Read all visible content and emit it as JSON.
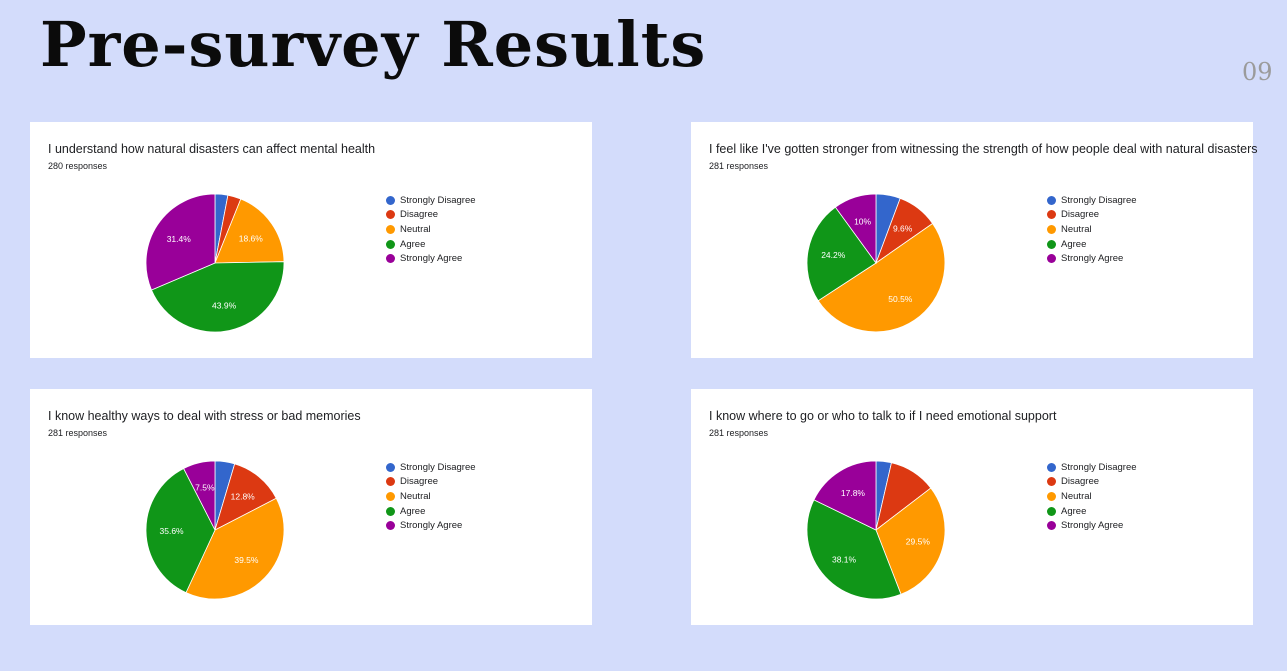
{
  "page": {
    "title": "Pre-survey Results",
    "page_number": "09"
  },
  "colors": {
    "Strongly Disagree": "#3366cc",
    "Disagree": "#dc3912",
    "Neutral": "#ff9900",
    "Agree": "#109618",
    "Strongly Agree": "#990099"
  },
  "chart_data": [
    {
      "type": "pie",
      "title": "I understand how natural disasters can affect mental health",
      "subtitle": "280 responses",
      "categories": [
        "Strongly Disagree",
        "Disagree",
        "Neutral",
        "Agree",
        "Strongly Agree"
      ],
      "values": [
        3.0,
        3.1,
        18.6,
        43.9,
        31.4
      ],
      "data_labels": [
        "",
        "",
        "18.6%",
        "43.9%",
        "31.4%"
      ],
      "legend": "right"
    },
    {
      "type": "pie",
      "title": "I feel like I've gotten stronger from witnessing the strength of how people deal with natural disasters",
      "subtitle": "281 responses",
      "categories": [
        "Strongly Disagree",
        "Disagree",
        "Neutral",
        "Agree",
        "Strongly Agree"
      ],
      "values": [
        5.7,
        9.6,
        50.5,
        24.2,
        10.0
      ],
      "data_labels": [
        "",
        "9.6%",
        "50.5%",
        "24.2%",
        "10%"
      ],
      "legend": "right"
    },
    {
      "type": "pie",
      "title": "I know healthy ways to deal with stress or bad memories",
      "subtitle": "281 responses",
      "categories": [
        "Strongly Disagree",
        "Disagree",
        "Neutral",
        "Agree",
        "Strongly Agree"
      ],
      "values": [
        4.6,
        12.8,
        39.5,
        35.6,
        7.5
      ],
      "data_labels": [
        "",
        "12.8%",
        "39.5%",
        "35.6%",
        "7.5%"
      ],
      "legend": "right"
    },
    {
      "type": "pie",
      "title": "I know where to go or who to talk to if I need emotional support",
      "subtitle": "281 responses",
      "categories": [
        "Strongly Disagree",
        "Disagree",
        "Neutral",
        "Agree",
        "Strongly Agree"
      ],
      "values": [
        3.6,
        11.0,
        29.5,
        38.1,
        17.8
      ],
      "data_labels": [
        "",
        "",
        "29.5%",
        "38.1%",
        "17.8%"
      ],
      "legend": "right"
    }
  ]
}
